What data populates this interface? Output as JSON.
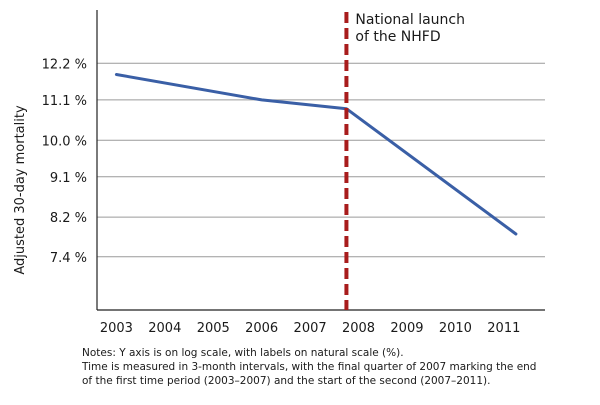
{
  "chart_data": {
    "type": "line",
    "ylabel": "Adjusted 30-day mortality",
    "xlabel": "",
    "y_scale": "log",
    "x_ticks": [
      "2003",
      "2004",
      "2005",
      "2006",
      "2007",
      "2008",
      "2009",
      "2010",
      "2011"
    ],
    "y_ticks": [
      "12.2 %",
      "11.1 %",
      "10.0 %",
      "9.1 %",
      "8.2 %",
      "7.4 %"
    ],
    "y_tick_values": [
      12.2,
      11.1,
      10.0,
      9.1,
      8.2,
      7.4
    ],
    "ylim": [
      6.45,
      14.0
    ],
    "xlim": [
      2002.6,
      2011.85
    ],
    "grid": "horizontal",
    "series": [
      {
        "color": "#3a5fa6",
        "x": [
          2003.0,
          2006.0,
          2007.75,
          2011.25
        ],
        "y": [
          11.85,
          11.1,
          10.85,
          7.85
        ]
      }
    ],
    "marker_line": {
      "x": 2007.75,
      "color": "#a81c1c",
      "label_lines": [
        "National launch",
        "of the NHFD"
      ]
    }
  },
  "notes": [
    "Notes: Y axis is on log scale, with labels on natural scale (%).",
    "Time is measured in 3-month intervals, with the final quarter of 2007 marking the end",
    "of the first time period (2003–2007) and the start of the second (2007–2011)."
  ]
}
